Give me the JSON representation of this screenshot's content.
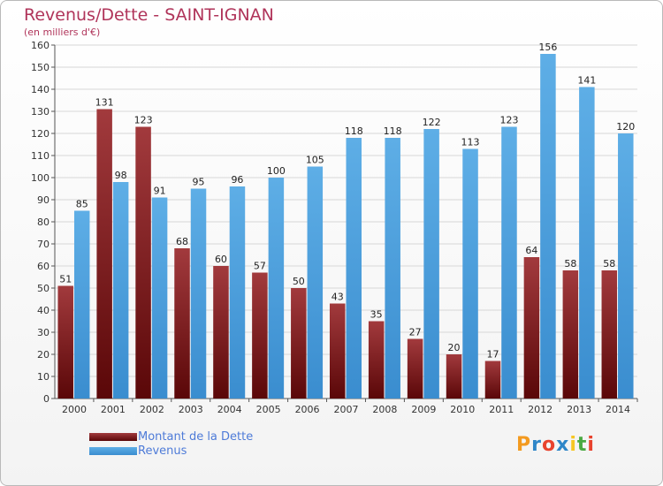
{
  "title": "Revenus/Dette - SAINT-IGNAN",
  "subtitle": "(en milliers d'€)",
  "logo": {
    "text": "Proxiti",
    "colors": [
      "#f39a1f",
      "#2e86c8",
      "#e8432e",
      "#2e86c8",
      "#f6c624",
      "#49a942",
      "#e8432e"
    ]
  },
  "colors": {
    "dette": "#7a1518",
    "revenus": "#4f9fd8",
    "title": "#b0345a",
    "legend_text": "#4e7bd8"
  },
  "chart_data": {
    "type": "bar",
    "categories": [
      "2000",
      "2001",
      "2002",
      "2003",
      "2004",
      "2005",
      "2006",
      "2007",
      "2008",
      "2009",
      "2010",
      "2011",
      "2012",
      "2013",
      "2014"
    ],
    "series": [
      {
        "name": "Montant de la Dette",
        "values": [
          51,
          131,
          123,
          68,
          60,
          57,
          50,
          43,
          35,
          27,
          20,
          17,
          64,
          58,
          58
        ]
      },
      {
        "name": "Revenus",
        "values": [
          85,
          98,
          91,
          95,
          96,
          100,
          105,
          118,
          118,
          122,
          113,
          123,
          156,
          141,
          120
        ]
      }
    ],
    "title": "Revenus/Dette - SAINT-IGNAN",
    "subtitle": "(en milliers d'€)",
    "ylim": [
      0,
      160
    ],
    "yticks": [
      0,
      10,
      20,
      30,
      40,
      50,
      60,
      70,
      80,
      90,
      100,
      110,
      120,
      130,
      140,
      150,
      160
    ],
    "grid": true,
    "legend": "bottom-left"
  }
}
